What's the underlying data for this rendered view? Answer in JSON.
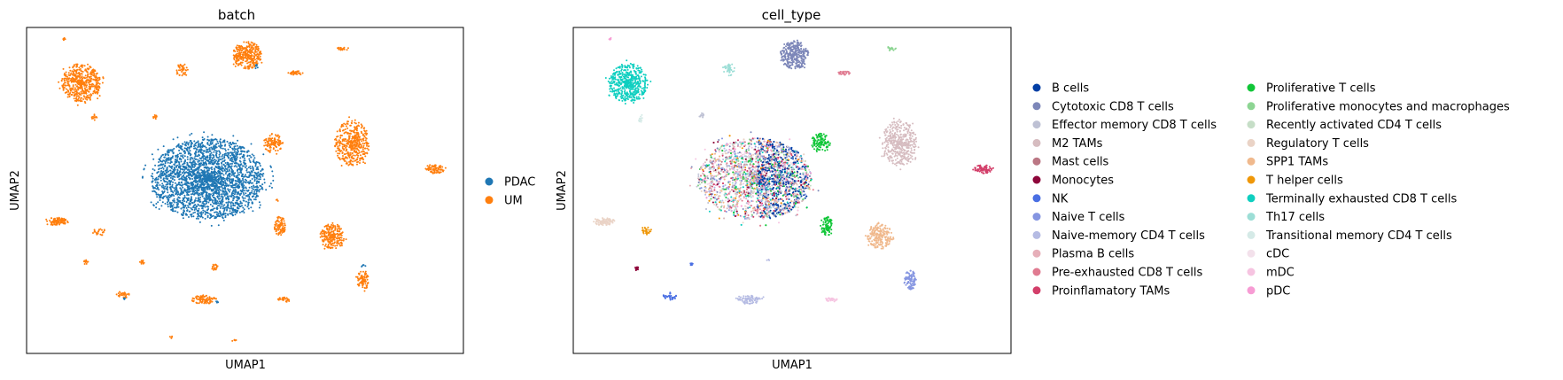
{
  "chart_data": [
    {
      "type": "scatter",
      "title": "batch",
      "xlabel": "UMAP1",
      "ylabel": "UMAP2",
      "xlim": [
        0,
        100
      ],
      "ylim": [
        0,
        100
      ],
      "grid": false,
      "legend_position": "right",
      "legend": [
        "PDAC",
        "UM"
      ],
      "series": [
        {
          "name": "PDAC",
          "color": "#1f77b4",
          "clusters": [
            {
              "x": 41.5,
              "y": 53.5,
              "rx": 13.0,
              "ry": 12.5,
              "n": 2600,
              "shape": "main"
            },
            {
              "x": 52.5,
              "y": 88.0,
              "rx": 0.6,
              "ry": 0.6,
              "n": 6,
              "shape": "blob"
            },
            {
              "x": 43.5,
              "y": 16.0,
              "rx": 0.5,
              "ry": 0.5,
              "n": 4,
              "shape": "blob"
            },
            {
              "x": 77.0,
              "y": 27.0,
              "rx": 0.6,
              "ry": 0.6,
              "n": 5,
              "shape": "blob"
            },
            {
              "x": 22.5,
              "y": 17.0,
              "rx": 0.5,
              "ry": 0.5,
              "n": 4,
              "shape": "blob"
            }
          ]
        },
        {
          "name": "UM",
          "color": "#ff7f0e",
          "clusters": [
            {
              "x": 12.5,
              "y": 83.0,
              "rx": 4.5,
              "ry": 6.0,
              "n": 500,
              "shape": "blob"
            },
            {
              "x": 50.5,
              "y": 91.5,
              "rx": 3.3,
              "ry": 4.2,
              "n": 320,
              "shape": "blob"
            },
            {
              "x": 74.5,
              "y": 64.5,
              "rx": 4.0,
              "ry": 7.0,
              "n": 420,
              "shape": "blob"
            },
            {
              "x": 70.0,
              "y": 36.0,
              "rx": 2.8,
              "ry": 4.0,
              "n": 220,
              "shape": "blob"
            },
            {
              "x": 56.5,
              "y": 64.5,
              "rx": 2.2,
              "ry": 3.0,
              "n": 110,
              "shape": "blob"
            },
            {
              "x": 58.0,
              "y": 39.0,
              "rx": 1.3,
              "ry": 3.0,
              "n": 90,
              "shape": "blob"
            },
            {
              "x": 77.0,
              "y": 22.5,
              "rx": 1.4,
              "ry": 3.0,
              "n": 90,
              "shape": "blob"
            },
            {
              "x": 93.5,
              "y": 56.5,
              "rx": 2.2,
              "ry": 1.3,
              "n": 80,
              "shape": "blob"
            },
            {
              "x": 7.0,
              "y": 40.5,
              "rx": 2.6,
              "ry": 1.2,
              "n": 90,
              "shape": "blob"
            },
            {
              "x": 40.5,
              "y": 16.5,
              "rx": 3.0,
              "ry": 1.3,
              "n": 90,
              "shape": "blob"
            },
            {
              "x": 35.5,
              "y": 87.0,
              "rx": 1.5,
              "ry": 1.8,
              "n": 40,
              "shape": "blob"
            },
            {
              "x": 61.5,
              "y": 86.0,
              "rx": 1.8,
              "ry": 0.7,
              "n": 30,
              "shape": "blob"
            },
            {
              "x": 72.5,
              "y": 93.5,
              "rx": 1.4,
              "ry": 0.6,
              "n": 20,
              "shape": "blob"
            },
            {
              "x": 16.5,
              "y": 37.5,
              "rx": 1.4,
              "ry": 1.4,
              "n": 25,
              "shape": "blob"
            },
            {
              "x": 22.0,
              "y": 18.0,
              "rx": 1.6,
              "ry": 1.0,
              "n": 30,
              "shape": "blob"
            },
            {
              "x": 59.0,
              "y": 16.5,
              "rx": 1.5,
              "ry": 0.7,
              "n": 25,
              "shape": "blob"
            },
            {
              "x": 43.0,
              "y": 26.5,
              "rx": 0.8,
              "ry": 0.9,
              "n": 18,
              "shape": "blob"
            },
            {
              "x": 26.5,
              "y": 28.0,
              "rx": 0.6,
              "ry": 0.6,
              "n": 12,
              "shape": "blob"
            },
            {
              "x": 13.5,
              "y": 28.0,
              "rx": 0.6,
              "ry": 0.6,
              "n": 12,
              "shape": "blob"
            },
            {
              "x": 29.5,
              "y": 72.5,
              "rx": 0.8,
              "ry": 0.7,
              "n": 12,
              "shape": "blob"
            },
            {
              "x": 15.5,
              "y": 72.5,
              "rx": 0.6,
              "ry": 1.2,
              "n": 12,
              "shape": "blob"
            },
            {
              "x": 8.5,
              "y": 96.5,
              "rx": 0.5,
              "ry": 0.4,
              "n": 6,
              "shape": "blob"
            },
            {
              "x": 33.0,
              "y": 5.0,
              "rx": 0.5,
              "ry": 0.5,
              "n": 5,
              "shape": "blob"
            },
            {
              "x": 47.5,
              "y": 4.0,
              "rx": 0.5,
              "ry": 0.5,
              "n": 5,
              "shape": "blob"
            },
            {
              "x": 57.5,
              "y": 47.0,
              "rx": 0.4,
              "ry": 0.4,
              "n": 3,
              "shape": "blob"
            }
          ]
        }
      ]
    },
    {
      "type": "scatter",
      "title": "cell_type",
      "xlabel": "UMAP1",
      "ylabel": "UMAP2",
      "xlim": [
        0,
        100
      ],
      "ylim": [
        0,
        100
      ],
      "grid": false,
      "legend_position": "right",
      "legend_columns": 2,
      "main_cluster": {
        "x": 41.5,
        "y": 53.5,
        "rx": 13.0,
        "ry": 12.5,
        "n": 3200,
        "mix": [
          {
            "name": "B cells",
            "weight": 4.0,
            "region": "right"
          },
          {
            "name": "Cytotoxic CD8 T cells",
            "weight": 1.2
          },
          {
            "name": "Effector memory CD8 T cells",
            "weight": 1.2
          },
          {
            "name": "M2 TAMs",
            "weight": 1.2
          },
          {
            "name": "Mast cells",
            "weight": 0.4
          },
          {
            "name": "Monocytes",
            "weight": 0.6
          },
          {
            "name": "Naive T cells",
            "weight": 1.0
          },
          {
            "name": "Naive-memory CD4 T cells",
            "weight": 1.0
          },
          {
            "name": "Plasma B cells",
            "weight": 1.5
          },
          {
            "name": "Pre-exhausted CD8 T cells",
            "weight": 1.0
          },
          {
            "name": "Proinflamatory TAMs",
            "weight": 1.0
          },
          {
            "name": "Proliferative T cells",
            "weight": 0.8
          },
          {
            "name": "Proliferative monocytes and macrophages",
            "weight": 0.8
          },
          {
            "name": "Recently activated CD4 T cells",
            "weight": 0.6
          },
          {
            "name": "Regulatory T cells",
            "weight": 1.0
          },
          {
            "name": "SPP1 TAMs",
            "weight": 0.6
          },
          {
            "name": "T helper cells",
            "weight": 0.6
          },
          {
            "name": "Terminally exhausted CD8 T cells",
            "weight": 1.0
          },
          {
            "name": "Th17 cells",
            "weight": 0.6
          },
          {
            "name": "cDC",
            "weight": 0.6
          },
          {
            "name": "mDC",
            "weight": 0.8
          },
          {
            "name": "pDC",
            "weight": 0.8
          }
        ]
      },
      "series": [
        {
          "name": "B cells",
          "color": "#023fa5",
          "clusters": []
        },
        {
          "name": "Cytotoxic CD8 T cells",
          "color": "#7d87b9",
          "clusters": [
            {
              "x": 50.5,
              "y": 91.5,
              "rx": 3.3,
              "ry": 4.2,
              "n": 320
            }
          ]
        },
        {
          "name": "Effector memory CD8 T cells",
          "color": "#bec1d4",
          "clusters": [
            {
              "x": 29.5,
              "y": 73.0,
              "rx": 0.8,
              "ry": 0.8,
              "n": 12
            }
          ]
        },
        {
          "name": "M2 TAMs",
          "color": "#d6bcc0",
          "clusters": [
            {
              "x": 74.5,
              "y": 64.5,
              "rx": 4.0,
              "ry": 7.0,
              "n": 420
            }
          ]
        },
        {
          "name": "Mast cells",
          "color": "#bb7784",
          "clusters": []
        },
        {
          "name": "Monocytes",
          "color": "#8e063b",
          "clusters": [
            {
              "x": 14.5,
              "y": 26.0,
              "rx": 0.4,
              "ry": 0.8,
              "n": 14
            }
          ]
        },
        {
          "name": "NK",
          "color": "#4a6fe3",
          "clusters": [
            {
              "x": 22.0,
              "y": 17.5,
              "rx": 1.6,
              "ry": 1.1,
              "n": 35
            },
            {
              "x": 27.0,
              "y": 27.5,
              "rx": 0.3,
              "ry": 0.6,
              "n": 8
            }
          ]
        },
        {
          "name": "Naive T cells",
          "color": "#8595e1",
          "clusters": [
            {
              "x": 77.0,
              "y": 22.5,
              "rx": 1.4,
              "ry": 3.0,
              "n": 90
            }
          ]
        },
        {
          "name": "Naive-memory CD4 T cells",
          "color": "#b5bbe3",
          "clusters": [
            {
              "x": 40.5,
              "y": 16.5,
              "rx": 3.0,
              "ry": 1.3,
              "n": 90
            },
            {
              "x": 44.5,
              "y": 28.5,
              "rx": 0.3,
              "ry": 0.3,
              "n": 3
            }
          ]
        },
        {
          "name": "Plasma B cells",
          "color": "#e6afb9",
          "clusters": []
        },
        {
          "name": "Pre-exhausted CD8 T cells",
          "color": "#e07b91",
          "clusters": [
            {
              "x": 62.0,
              "y": 86.0,
              "rx": 1.5,
              "ry": 0.6,
              "n": 25
            }
          ]
        },
        {
          "name": "Proinflamatory TAMs",
          "color": "#d33f6a",
          "clusters": [
            {
              "x": 93.5,
              "y": 56.5,
              "rx": 2.2,
              "ry": 1.3,
              "n": 80
            }
          ]
        },
        {
          "name": "Proliferative T cells",
          "color": "#11c638",
          "clusters": [
            {
              "x": 56.5,
              "y": 64.5,
              "rx": 2.2,
              "ry": 3.0,
              "n": 110
            },
            {
              "x": 58.0,
              "y": 39.0,
              "rx": 1.3,
              "ry": 3.0,
              "n": 90
            }
          ]
        },
        {
          "name": "Proliferative monocytes and macrophages",
          "color": "#8dd593",
          "clusters": [
            {
              "x": 72.5,
              "y": 93.5,
              "rx": 1.4,
              "ry": 0.6,
              "n": 20
            }
          ]
        },
        {
          "name": "Recently activated CD4 T cells",
          "color": "#c6dec7",
          "clusters": []
        },
        {
          "name": "Regulatory T cells",
          "color": "#ead3c6",
          "clusters": [
            {
              "x": 7.0,
              "y": 40.5,
              "rx": 2.6,
              "ry": 1.2,
              "n": 90
            }
          ]
        },
        {
          "name": "SPP1 TAMs",
          "color": "#f0b98d",
          "clusters": [
            {
              "x": 70.0,
              "y": 36.0,
              "rx": 2.8,
              "ry": 4.0,
              "n": 220
            }
          ]
        },
        {
          "name": "T helper cells",
          "color": "#ef9708",
          "clusters": [
            {
              "x": 16.5,
              "y": 37.5,
              "rx": 1.4,
              "ry": 1.4,
              "n": 25
            }
          ]
        },
        {
          "name": "Terminally exhausted CD8 T cells",
          "color": "#0fcfc0",
          "clusters": [
            {
              "x": 12.5,
              "y": 83.0,
              "rx": 4.5,
              "ry": 6.0,
              "n": 500
            }
          ]
        },
        {
          "name": "Th17 cells",
          "color": "#9cded6",
          "clusters": [
            {
              "x": 35.5,
              "y": 87.0,
              "rx": 1.5,
              "ry": 1.8,
              "n": 40
            }
          ]
        },
        {
          "name": "Transitional memory CD4 T cells",
          "color": "#d5eae7",
          "clusters": [
            {
              "x": 15.5,
              "y": 72.0,
              "rx": 0.6,
              "ry": 1.2,
              "n": 12
            }
          ]
        },
        {
          "name": "cDC",
          "color": "#f3e1eb",
          "clusters": []
        },
        {
          "name": "mDC",
          "color": "#f6c4e1",
          "clusters": [
            {
              "x": 59.0,
              "y": 16.5,
              "rx": 1.5,
              "ry": 0.7,
              "n": 25
            }
          ]
        },
        {
          "name": "pDC",
          "color": "#f79cd4",
          "clusters": [
            {
              "x": 8.5,
              "y": 96.5,
              "rx": 0.5,
              "ry": 0.4,
              "n": 6
            }
          ]
        }
      ]
    }
  ]
}
